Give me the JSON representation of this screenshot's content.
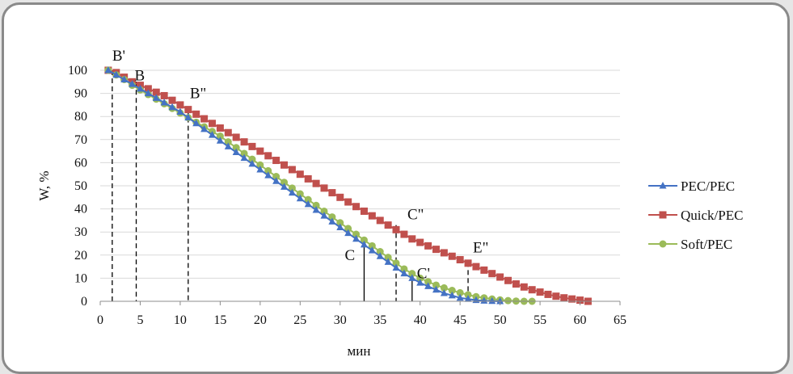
{
  "chart_data": {
    "type": "line",
    "title": "",
    "xlabel": "мин",
    "ylabel": "W, %",
    "xlim": [
      0,
      65
    ],
    "ylim": [
      0,
      100
    ],
    "xticks": [
      0,
      5,
      10,
      15,
      20,
      25,
      30,
      35,
      40,
      45,
      50,
      55,
      60,
      65
    ],
    "yticks": [
      0,
      10,
      20,
      30,
      40,
      50,
      60,
      70,
      80,
      90,
      100
    ],
    "grid": "horizontal",
    "legend_position": "right",
    "series": [
      {
        "name": "PEC/PEC",
        "color": "#4472c4",
        "marker": "triangle",
        "x": [
          1,
          2,
          3,
          4,
          5,
          6,
          7,
          8,
          9,
          10,
          11,
          12,
          13,
          14,
          15,
          16,
          17,
          18,
          19,
          20,
          21,
          22,
          23,
          24,
          25,
          26,
          27,
          28,
          29,
          30,
          31,
          32,
          33,
          34,
          35,
          36,
          37,
          38,
          39,
          40,
          41,
          42,
          43,
          44,
          45,
          46,
          47,
          48,
          49,
          50
        ],
        "y": [
          100,
          98,
          96,
          94,
          92,
          90,
          88,
          86,
          84,
          82,
          79.5,
          77,
          74.5,
          72,
          69.5,
          67,
          64.5,
          62,
          59.5,
          57,
          54.5,
          52,
          49.5,
          47,
          44.5,
          42,
          39.5,
          37,
          34.5,
          32,
          29.5,
          27,
          24.5,
          22,
          19.5,
          17,
          14.5,
          12,
          10,
          8,
          6.5,
          5,
          3.5,
          2.5,
          1.5,
          1,
          0.5,
          0.2,
          0.1,
          0
        ]
      },
      {
        "name": "Quick/PEC",
        "color": "#c0504d",
        "marker": "square",
        "x": [
          1,
          2,
          3,
          4,
          5,
          6,
          7,
          8,
          9,
          10,
          11,
          12,
          13,
          14,
          15,
          16,
          17,
          18,
          19,
          20,
          21,
          22,
          23,
          24,
          25,
          26,
          27,
          28,
          29,
          30,
          31,
          32,
          33,
          34,
          35,
          36,
          37,
          38,
          39,
          40,
          41,
          42,
          43,
          44,
          45,
          46,
          47,
          48,
          49,
          50,
          51,
          52,
          53,
          54,
          55,
          56,
          57,
          58,
          59,
          60,
          61
        ],
        "y": [
          100,
          99,
          97,
          95,
          93.5,
          92,
          90.5,
          89,
          87,
          85,
          83,
          81,
          79,
          77,
          75,
          73,
          71,
          69,
          67,
          65,
          63,
          61,
          59,
          57,
          55,
          53,
          51,
          49,
          47,
          45,
          43,
          41,
          39,
          37,
          35,
          33,
          31,
          29,
          27,
          25.5,
          24,
          22.5,
          21,
          19.5,
          18,
          16.5,
          15,
          13.5,
          12,
          10.5,
          9,
          7.5,
          6.2,
          5,
          4,
          3,
          2.2,
          1.5,
          1,
          0.5,
          0
        ]
      },
      {
        "name": "Soft/PEC",
        "color": "#9bbb59",
        "marker": "circle",
        "x": [
          1,
          2,
          3,
          4,
          5,
          6,
          7,
          8,
          9,
          10,
          11,
          12,
          13,
          14,
          15,
          16,
          17,
          18,
          19,
          20,
          21,
          22,
          23,
          24,
          25,
          26,
          27,
          28,
          29,
          30,
          31,
          32,
          33,
          34,
          35,
          36,
          37,
          38,
          39,
          40,
          41,
          42,
          43,
          44,
          45,
          46,
          47,
          48,
          49,
          50,
          51,
          52,
          53,
          54
        ],
        "y": [
          100,
          98,
          96,
          93.5,
          91.5,
          89.5,
          87.5,
          85.5,
          83.5,
          81.5,
          79.5,
          77.5,
          75.5,
          73.5,
          71.5,
          69,
          66.5,
          64,
          61.5,
          59,
          56.5,
          54,
          51.5,
          49,
          46.5,
          44,
          41.5,
          39,
          36.5,
          34,
          31.5,
          29,
          26.5,
          24,
          21.5,
          19,
          16.5,
          14,
          12,
          10,
          8.5,
          7,
          5.8,
          4.7,
          3.7,
          2.8,
          2,
          1.5,
          1,
          0.6,
          0.3,
          0.1,
          0,
          0
        ]
      }
    ],
    "annotations": [
      {
        "label": "B'",
        "x": 1.5,
        "y": 100,
        "line": "dashed"
      },
      {
        "label": "B",
        "x": 4.5,
        "y": 95,
        "line": "dashed"
      },
      {
        "label": "B\"",
        "x": 11,
        "y": 83,
        "line": "dashed"
      },
      {
        "label": "C",
        "x": 33,
        "y": 27,
        "line": "solid"
      },
      {
        "label": "C'",
        "x": 39,
        "y": 12,
        "line": "solid"
      },
      {
        "label": "C\"",
        "x": 37,
        "y": 33,
        "line": "dashed"
      },
      {
        "label": "E\"",
        "x": 46,
        "y": 17,
        "line": "dashed"
      }
    ]
  }
}
